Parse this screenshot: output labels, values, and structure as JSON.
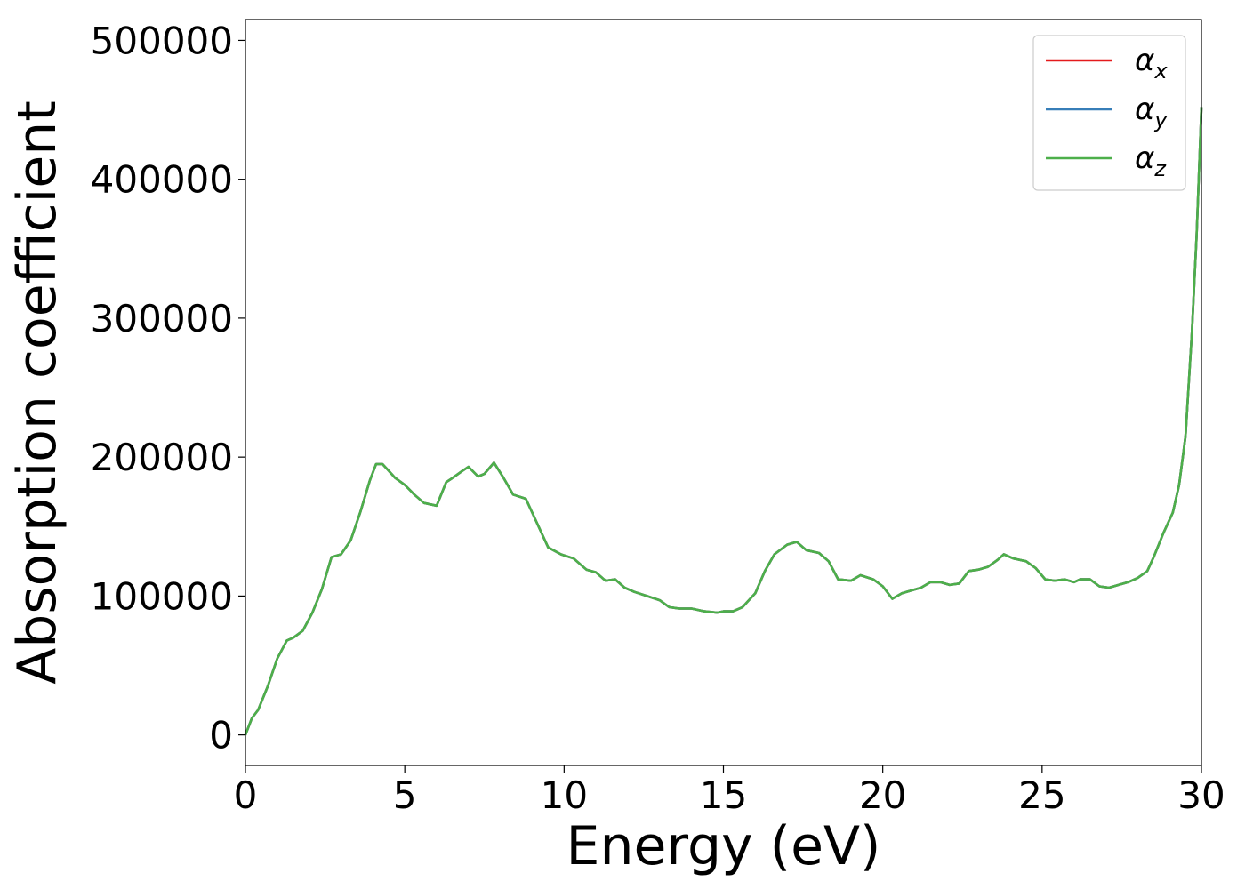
{
  "chart_data": {
    "type": "line",
    "xlabel": "Energy (eV)",
    "ylabel": "Absorption coefficient",
    "xlim": [
      0,
      30
    ],
    "ylim": [
      -22000,
      515000
    ],
    "x_ticks": [
      0,
      5,
      10,
      15,
      20,
      25,
      30
    ],
    "y_ticks": [
      0,
      100000,
      200000,
      300000,
      400000,
      500000
    ],
    "grid": false,
    "legend_position": "top-right",
    "legend": [
      {
        "symbol": "α",
        "subscript": "x",
        "color": "#e41a1c"
      },
      {
        "symbol": "α",
        "subscript": "y",
        "color": "#377eb8"
      },
      {
        "symbol": "α",
        "subscript": "z",
        "color": "#4daf4a"
      }
    ],
    "x": [
      0,
      0.2,
      0.4,
      0.7,
      1.0,
      1.3,
      1.5,
      1.8,
      2.1,
      2.4,
      2.7,
      3.0,
      3.3,
      3.6,
      3.9,
      4.1,
      4.3,
      4.5,
      4.7,
      5.0,
      5.3,
      5.6,
      6.0,
      6.3,
      6.5,
      6.8,
      7.0,
      7.3,
      7.5,
      7.8,
      8.1,
      8.4,
      8.8,
      9.1,
      9.5,
      9.9,
      10.3,
      10.7,
      11.0,
      11.3,
      11.6,
      11.9,
      12.2,
      12.6,
      13.0,
      13.3,
      13.6,
      14.0,
      14.4,
      14.8,
      15.0,
      15.3,
      15.6,
      16.0,
      16.3,
      16.6,
      17.0,
      17.3,
      17.6,
      18.0,
      18.3,
      18.6,
      19.0,
      19.3,
      19.7,
      20.0,
      20.3,
      20.6,
      20.9,
      21.2,
      21.5,
      21.8,
      22.1,
      22.4,
      22.7,
      23.0,
      23.3,
      23.6,
      23.8,
      24.1,
      24.5,
      24.8,
      25.1,
      25.4,
      25.7,
      26.0,
      26.2,
      26.5,
      26.8,
      27.1,
      27.4,
      27.7,
      28.0,
      28.3,
      28.5,
      28.8,
      29.1,
      29.3,
      29.5,
      29.7,
      29.85,
      30.0
    ],
    "series": [
      {
        "values": [
          0,
          12000,
          18000,
          35000,
          55000,
          68000,
          70000,
          75000,
          88000,
          105000,
          128000,
          130000,
          140000,
          160000,
          183000,
          195000,
          195000,
          190000,
          185000,
          180000,
          173000,
          167000,
          165000,
          182000,
          185000,
          190000,
          193000,
          186000,
          188000,
          196000,
          185000,
          173000,
          170000,
          155000,
          135000,
          130000,
          127000,
          119000,
          117000,
          111000,
          112000,
          106000,
          103000,
          100000,
          97000,
          92000,
          91000,
          91000,
          89000,
          88000,
          89000,
          89000,
          92000,
          102000,
          118000,
          130000,
          137000,
          139000,
          133000,
          131000,
          125000,
          112000,
          111000,
          115000,
          112000,
          107000,
          98000,
          102000,
          104000,
          106000,
          110000,
          110000,
          108000,
          109000,
          118000,
          119000,
          121000,
          126000,
          130000,
          127000,
          125000,
          120000,
          112000,
          111000,
          112000,
          110000,
          112000,
          112000,
          107000,
          106000,
          108000,
          110000,
          113000,
          118000,
          128000,
          145000,
          160000,
          180000,
          215000,
          290000,
          360000,
          452000
        ]
      },
      {
        "values": [
          0,
          12000,
          18000,
          35000,
          55000,
          68000,
          70000,
          75000,
          88000,
          105000,
          128000,
          130000,
          140000,
          160000,
          183000,
          195000,
          195000,
          190000,
          185000,
          180000,
          173000,
          167000,
          165000,
          182000,
          185000,
          190000,
          193000,
          186000,
          188000,
          196000,
          185000,
          173000,
          170000,
          155000,
          135000,
          130000,
          127000,
          119000,
          117000,
          111000,
          112000,
          106000,
          103000,
          100000,
          97000,
          92000,
          91000,
          91000,
          89000,
          88000,
          89000,
          89000,
          92000,
          102000,
          118000,
          130000,
          137000,
          139000,
          133000,
          131000,
          125000,
          112000,
          111000,
          115000,
          112000,
          107000,
          98000,
          102000,
          104000,
          106000,
          110000,
          110000,
          108000,
          109000,
          118000,
          119000,
          121000,
          126000,
          130000,
          127000,
          125000,
          120000,
          112000,
          111000,
          112000,
          110000,
          112000,
          112000,
          107000,
          106000,
          108000,
          110000,
          113000,
          118000,
          128000,
          145000,
          160000,
          180000,
          215000,
          290000,
          360000,
          452000
        ]
      },
      {
        "values": [
          0,
          12000,
          18000,
          35000,
          55000,
          68000,
          70000,
          75000,
          88000,
          105000,
          128000,
          130000,
          140000,
          160000,
          183000,
          195000,
          195000,
          190000,
          185000,
          180000,
          173000,
          167000,
          165000,
          182000,
          185000,
          190000,
          193000,
          186000,
          188000,
          196000,
          185000,
          173000,
          170000,
          155000,
          135000,
          130000,
          127000,
          119000,
          117000,
          111000,
          112000,
          106000,
          103000,
          100000,
          97000,
          92000,
          91000,
          91000,
          89000,
          88000,
          89000,
          89000,
          92000,
          102000,
          118000,
          130000,
          137000,
          139000,
          133000,
          131000,
          125000,
          112000,
          111000,
          115000,
          112000,
          107000,
          98000,
          102000,
          104000,
          106000,
          110000,
          110000,
          108000,
          109000,
          118000,
          119000,
          121000,
          126000,
          130000,
          127000,
          125000,
          120000,
          112000,
          111000,
          112000,
          110000,
          112000,
          112000,
          107000,
          106000,
          108000,
          110000,
          113000,
          118000,
          128000,
          145000,
          160000,
          180000,
          215000,
          290000,
          360000,
          452000
        ]
      }
    ]
  }
}
